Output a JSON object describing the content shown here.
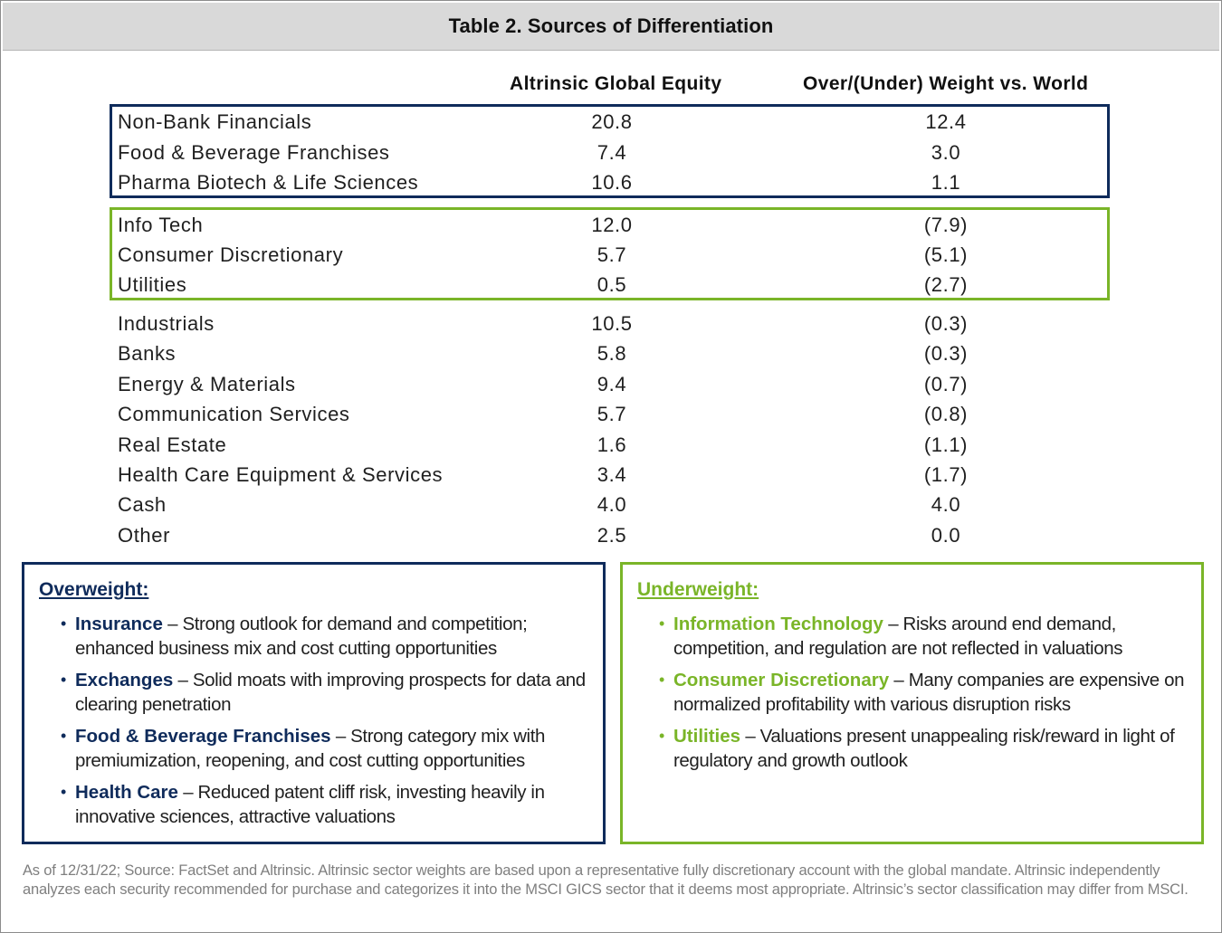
{
  "title": "Table 2. Sources of Differentiation",
  "columns": {
    "col1": "Altrinsic Global Equity",
    "col2": "Over/(Under) Weight vs. World"
  },
  "groups": {
    "overweight": [
      {
        "label": "Non-Bank Financials",
        "v1": "20.8",
        "v2": "12.4"
      },
      {
        "label": "Food & Beverage Franchises",
        "v1": "7.4",
        "v2": "3.0"
      },
      {
        "label": "Pharma Biotech & Life Sciences",
        "v1": "10.6",
        "v2": "1.1"
      }
    ],
    "underweight": [
      {
        "label": "Info Tech",
        "v1": "12.0",
        "v2": "(7.9)"
      },
      {
        "label": "Consumer Discretionary",
        "v1": "5.7",
        "v2": "(5.1)"
      },
      {
        "label": "Utilities",
        "v1": "0.5",
        "v2": "(2.7)"
      }
    ],
    "other": [
      {
        "label": "Industrials",
        "v1": "10.5",
        "v2": "(0.3)"
      },
      {
        "label": "Banks",
        "v1": "5.8",
        "v2": "(0.3)"
      },
      {
        "label": "Energy & Materials",
        "v1": "9.4",
        "v2": "(0.7)"
      },
      {
        "label": "Communication Services",
        "v1": "5.7",
        "v2": "(0.8)"
      },
      {
        "label": "Real Estate",
        "v1": "1.6",
        "v2": "(1.1)"
      },
      {
        "label": "Health Care Equipment & Services",
        "v1": "3.4",
        "v2": "(1.7)"
      },
      {
        "label": "Cash",
        "v1": "4.0",
        "v2": "4.0"
      },
      {
        "label": "Other",
        "v1": "2.5",
        "v2": "0.0"
      }
    ]
  },
  "overweight_box": {
    "title": "Overweight:",
    "items": [
      {
        "term": "Insurance",
        "text": " – Strong outlook for demand and competition; enhanced business mix and cost cutting opportunities"
      },
      {
        "term": "Exchanges",
        "text": " – Solid moats with improving prospects for data and clearing penetration"
      },
      {
        "term": "Food & Beverage Franchises",
        "text": " – Strong category mix with premiumization, reopening, and cost cutting opportunities"
      },
      {
        "term": "Health Care",
        "text": " – Reduced patent cliff risk,  investing heavily in innovative sciences, attractive valuations"
      }
    ]
  },
  "underweight_box": {
    "title": "Underweight:",
    "items": [
      {
        "term": "Information Technology",
        "text": " – Risks around end demand, competition, and regulation are not reflected in valuations"
      },
      {
        "term": "Consumer Discretionary",
        "text": " – Many companies are expensive on normalized profitability with various disruption risks"
      },
      {
        "term": "Utilities",
        "text": "  – Valuations present unappealing risk/reward in light of regulatory and growth outlook"
      }
    ]
  },
  "bullet": "•",
  "footnote": "As of 12/31/22; Source: FactSet and Altrinsic.  Altrinsic sector weights are based upon a representative fully discretionary account with the global mandate. Altrinsic independently analyzes each security recommended for purchase and categorizes it into the MSCI GICS sector that it deems most appropriate. Altrinsic’s sector classification may differ from MSCI.",
  "colors": {
    "navy": "#0f2b5b",
    "green": "#7ab528",
    "title_bar": "#d9d9d9",
    "footnote": "#7f7f7f"
  }
}
